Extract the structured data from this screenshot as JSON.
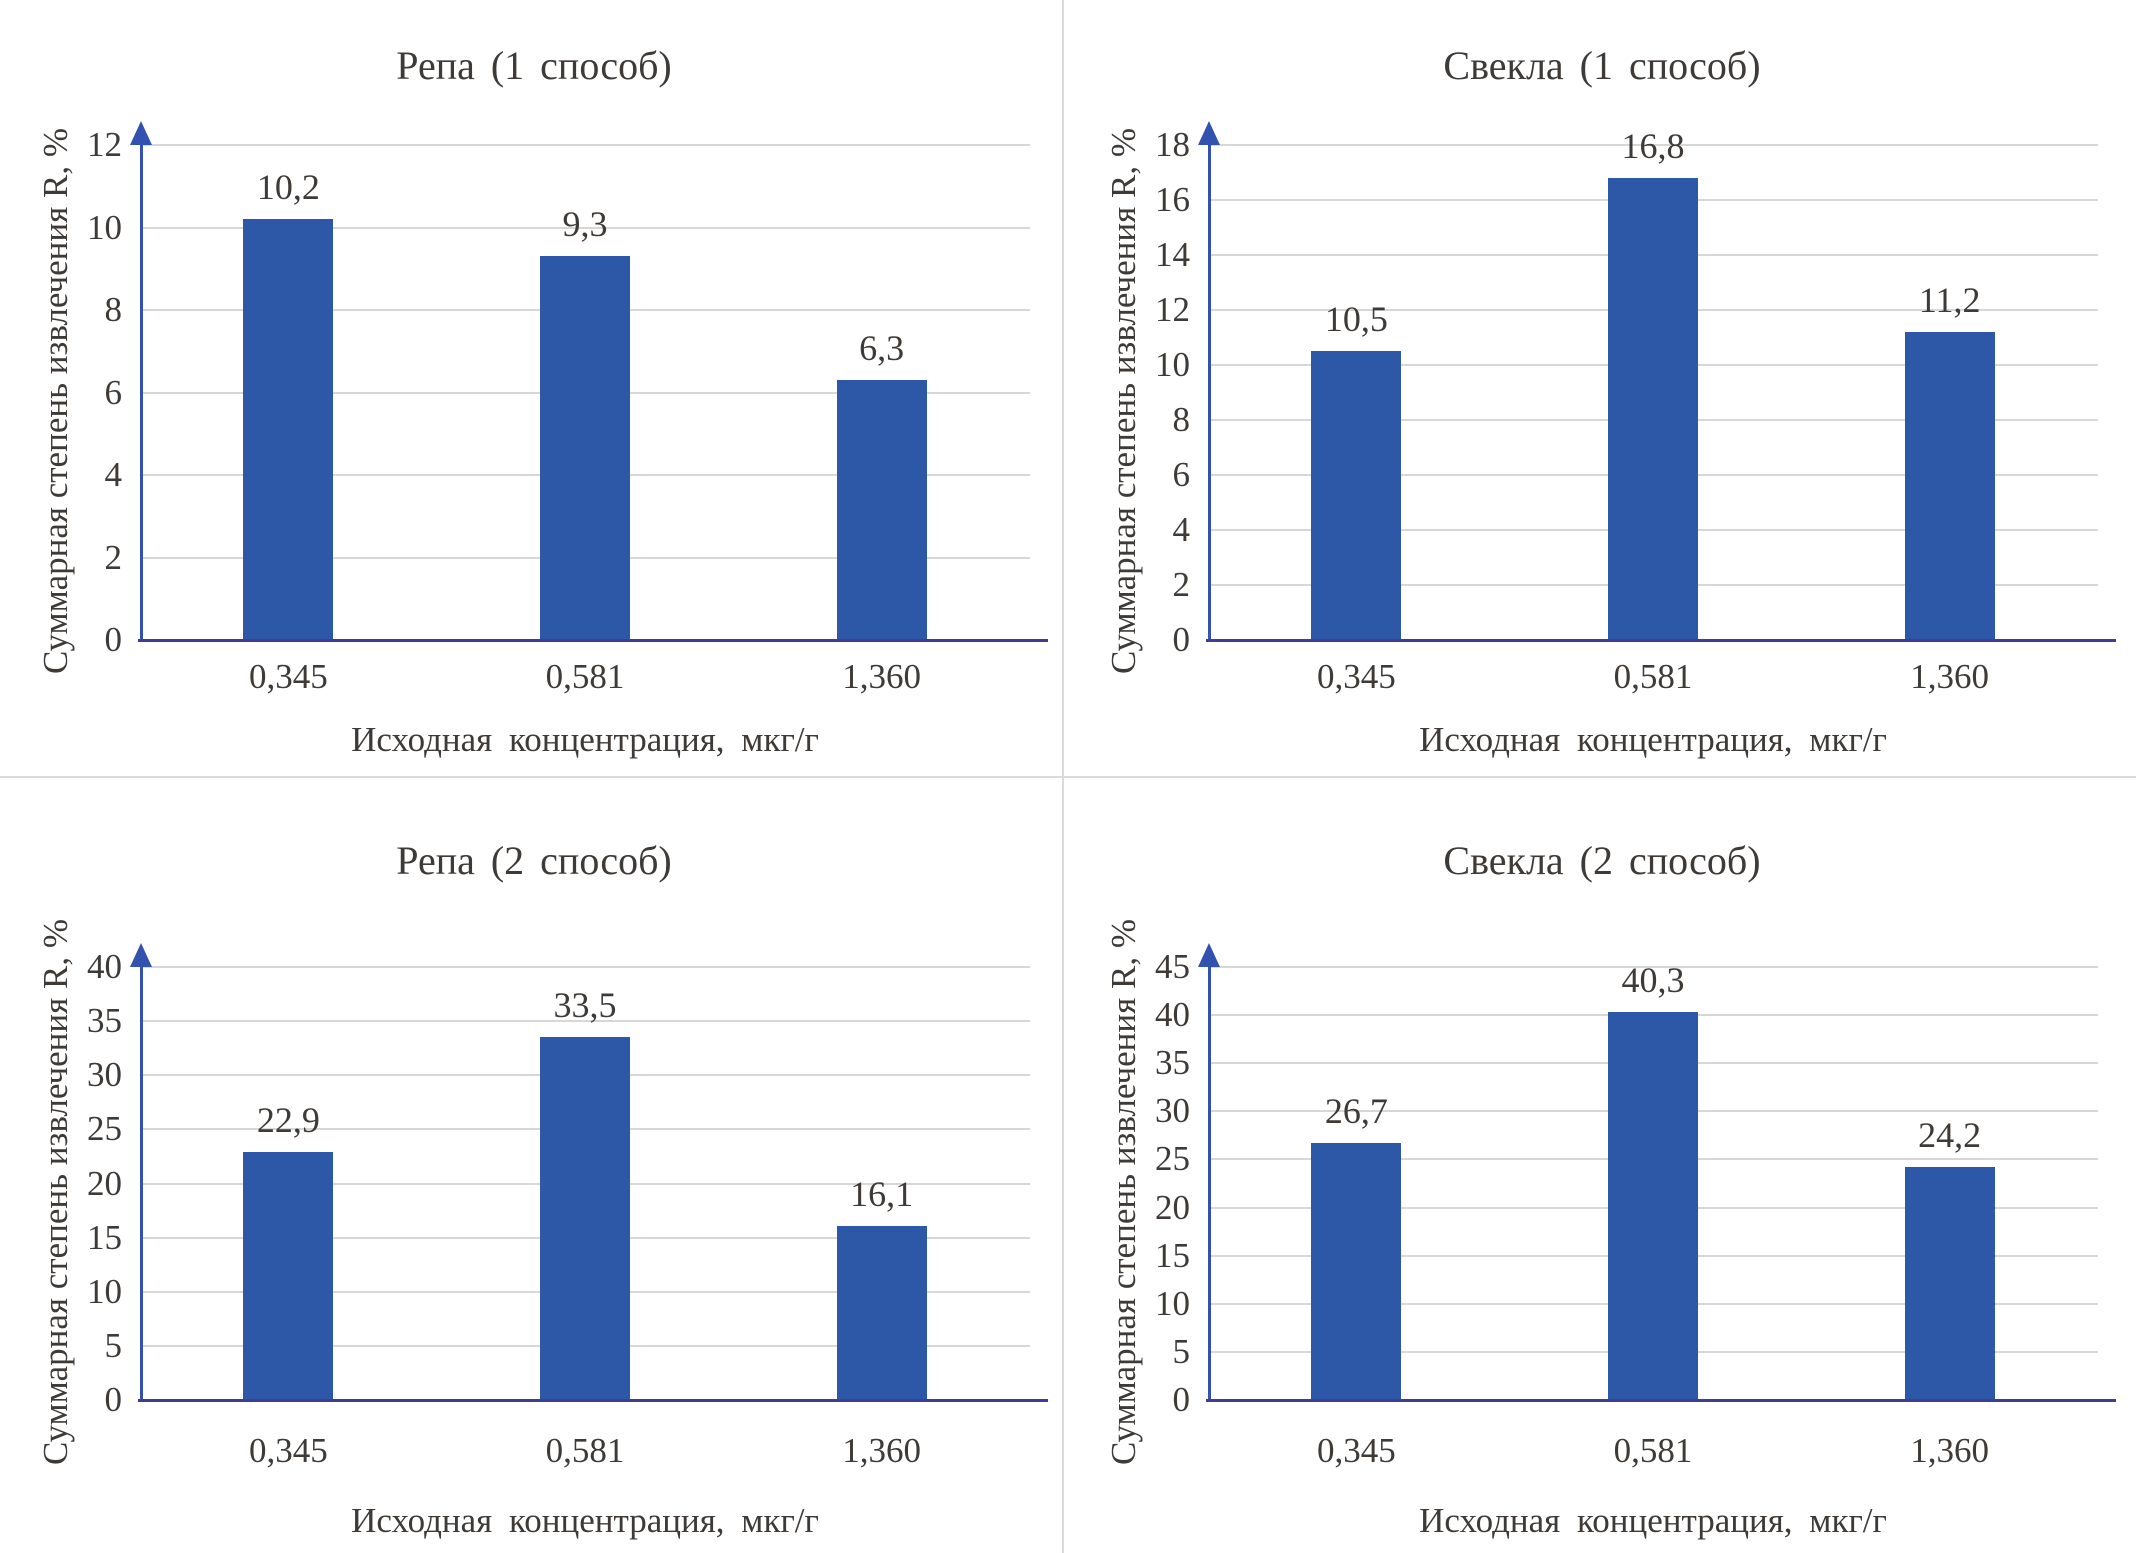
{
  "page": {
    "background": "#ffffff",
    "layout": "2x2 grid of bar charts separated by light gray divider lines"
  },
  "colors": {
    "bar": "#2d58a8",
    "y_axis": "#3351af",
    "x_axis_baseline": "#433c94",
    "gridline": "#d7d7d7",
    "text": "#3e3a37",
    "divider": "#dadada"
  },
  "shared": {
    "xlabel": "Исходная концентрация, мкг/г",
    "ylabel": "Суммарная степень извлечения R, %",
    "categories": [
      "0,345",
      "0,581",
      "1,360"
    ]
  },
  "chart_data": [
    {
      "type": "bar",
      "title": "Репа (1 способ)",
      "categories": [
        "0,345",
        "0,581",
        "1,360"
      ],
      "values": [
        10.2,
        9.3,
        6.3
      ],
      "value_labels": [
        "10,2",
        "9,3",
        "6,3"
      ],
      "xlabel": "Исходная концентрация, мкг/г",
      "ylabel": "Суммарная степень извлечения R, %",
      "ylim": [
        0,
        12
      ],
      "ystep": 2,
      "yticks": [
        0,
        2,
        4,
        6,
        8,
        10,
        12
      ],
      "grid": true,
      "legend": "none",
      "bar_color": "#2d58a8"
    },
    {
      "type": "bar",
      "title": "Свекла (1 способ)",
      "categories": [
        "0,345",
        "0,581",
        "1,360"
      ],
      "values": [
        10.5,
        16.8,
        11.2
      ],
      "value_labels": [
        "10,5",
        "16,8",
        "11,2"
      ],
      "xlabel": "Исходная концентрация, мкг/г",
      "ylabel": "Суммарная степень извлечения R, %",
      "ylim": [
        0,
        18
      ],
      "ystep": 2,
      "yticks": [
        0,
        2,
        4,
        6,
        8,
        10,
        12,
        14,
        16,
        18
      ],
      "grid": true,
      "legend": "none",
      "bar_color": "#2d58a8"
    },
    {
      "type": "bar",
      "title": "Репа (2 способ)",
      "categories": [
        "0,345",
        "0,581",
        "1,360"
      ],
      "values": [
        22.9,
        33.5,
        16.1
      ],
      "value_labels": [
        "22,9",
        "33,5",
        "16,1"
      ],
      "xlabel": "Исходная концентрация, мкг/г",
      "ylabel": "Суммарная степень извлечения R, %",
      "ylim": [
        0,
        40
      ],
      "ystep": 5,
      "yticks": [
        0,
        5,
        10,
        15,
        20,
        25,
        30,
        35,
        40
      ],
      "grid": true,
      "legend": "none",
      "bar_color": "#2d58a8"
    },
    {
      "type": "bar",
      "title": "Свекла (2 способ)",
      "categories": [
        "0,345",
        "0,581",
        "1,360"
      ],
      "values": [
        26.7,
        40.3,
        24.2
      ],
      "value_labels": [
        "26,7",
        "40,3",
        "24,2"
      ],
      "xlabel": "Исходная концентрация, мкг/г",
      "ylabel": "Суммарная степень извлечения R, %",
      "ylim": [
        0,
        45
      ],
      "ystep": 5,
      "yticks": [
        0,
        5,
        10,
        15,
        20,
        25,
        30,
        35,
        40,
        45
      ],
      "grid": true,
      "legend": "none",
      "bar_color": "#2d58a8"
    }
  ]
}
